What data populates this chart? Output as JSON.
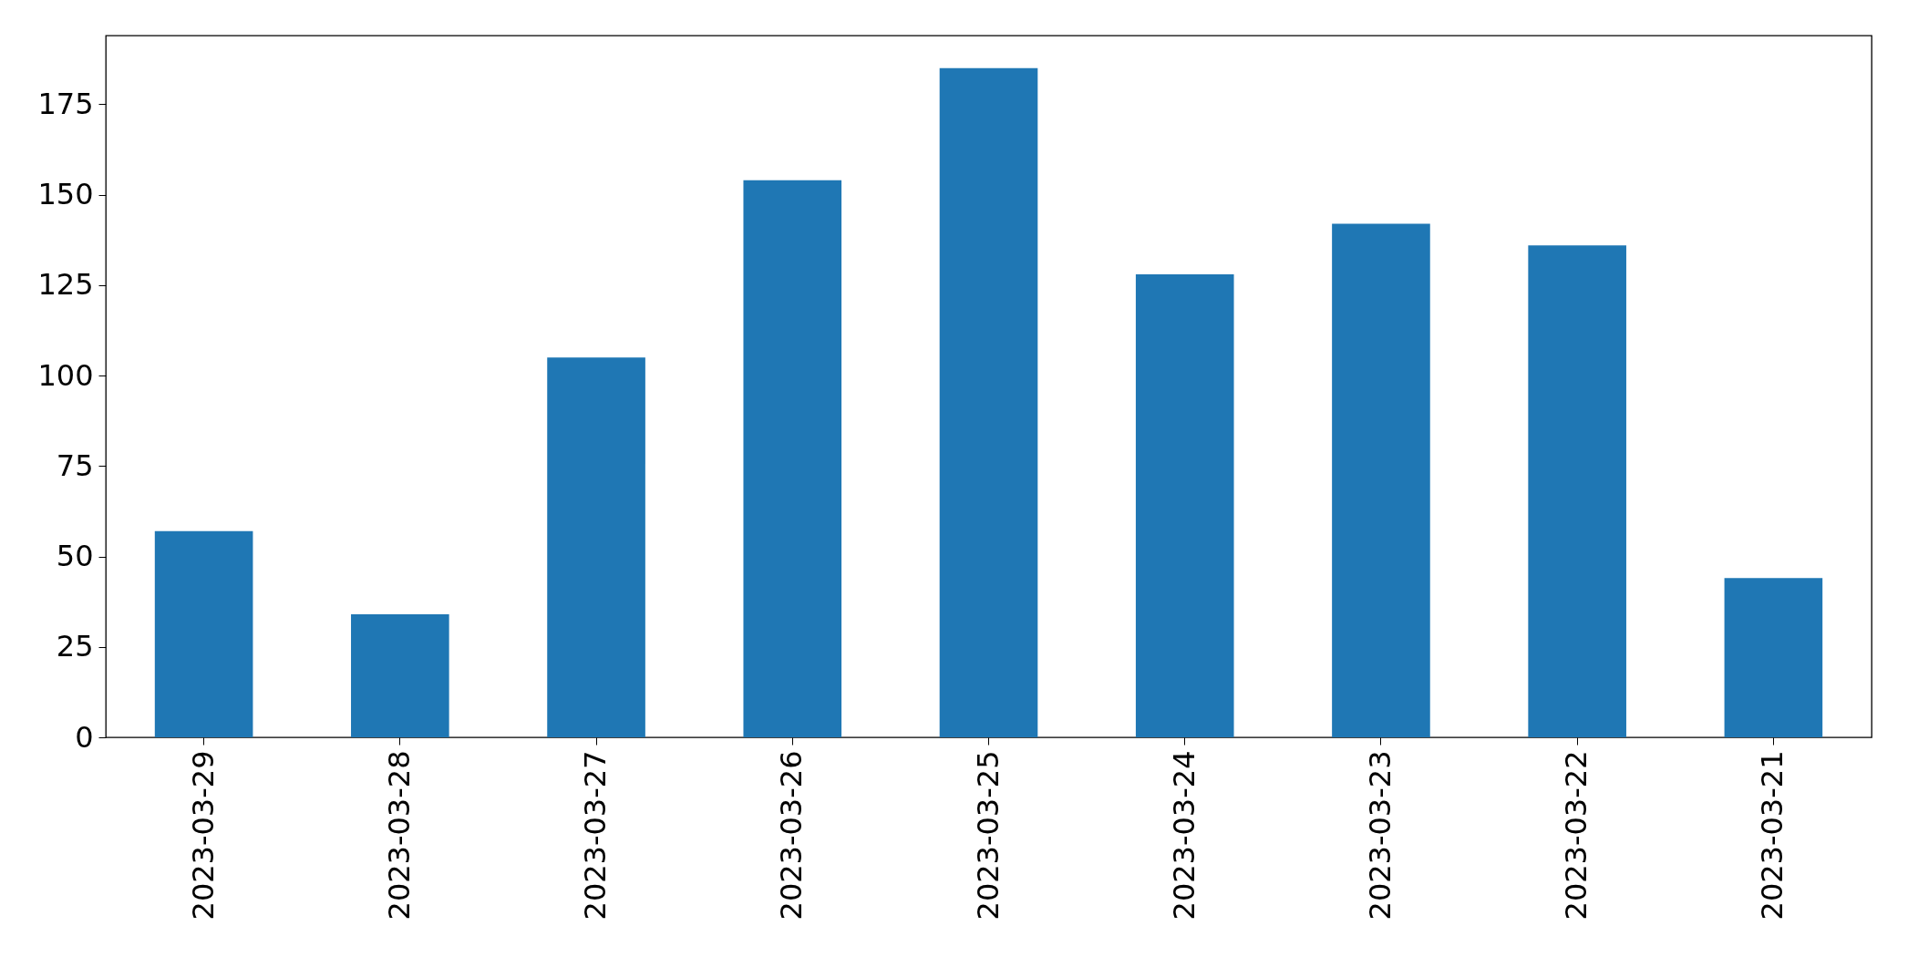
{
  "chart_data": {
    "type": "bar",
    "categories": [
      "2023-03-29",
      "2023-03-28",
      "2023-03-27",
      "2023-03-26",
      "2023-03-25",
      "2023-03-24",
      "2023-03-23",
      "2023-03-22",
      "2023-03-21"
    ],
    "values": [
      57,
      34,
      105,
      154,
      185,
      128,
      142,
      136,
      44
    ],
    "color": "#1f77b4",
    "ylim": [
      0,
      194
    ],
    "yticks": [
      0,
      25,
      50,
      75,
      100,
      125,
      150,
      175
    ]
  }
}
